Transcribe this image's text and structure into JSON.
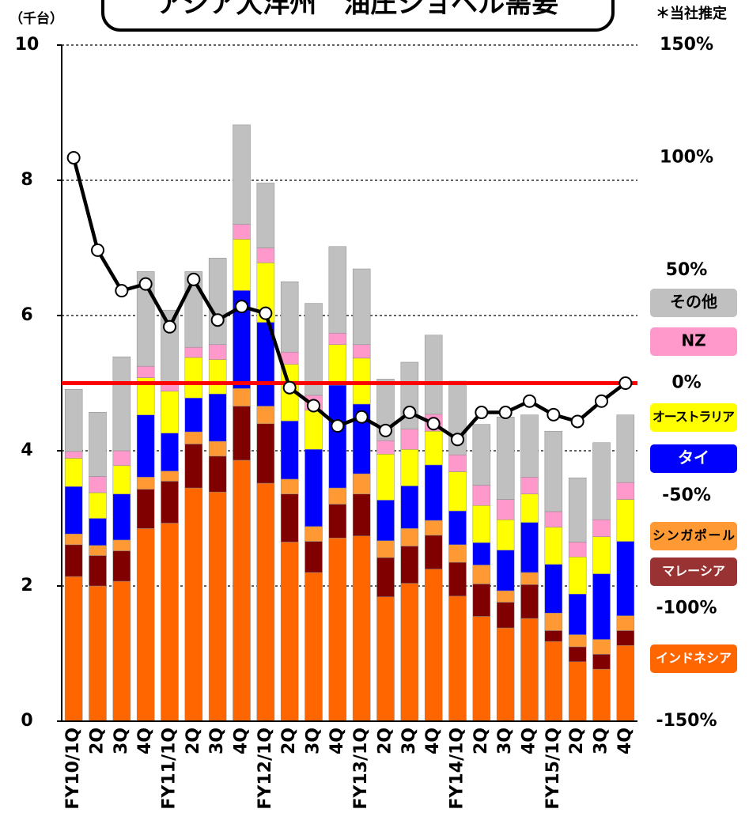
{
  "chart_data": {
    "type": "stacked_bar_line",
    "title": "アジア大洋州　油圧ショベル需要",
    "note": "＊当社推定",
    "y_unit": "（千台）",
    "categories": [
      "FY10/1Q",
      "2Q",
      "3Q",
      "4Q",
      "FY11/1Q",
      "2Q",
      "3Q",
      "4Q",
      "FY12/1Q",
      "2Q",
      "3Q",
      "4Q",
      "FY13/1Q",
      "2Q",
      "3Q",
      "4Q",
      "FY14/1Q",
      "2Q",
      "3Q",
      "4Q",
      "FY15/1Q",
      "2Q",
      "3Q",
      "4Q"
    ],
    "series": [
      {
        "name": "インドネシア",
        "color": "#ff6600",
        "values": [
          2.14,
          2.0,
          2.07,
          2.85,
          2.93,
          3.45,
          3.39,
          3.86,
          3.52,
          2.65,
          2.2,
          2.71,
          2.74,
          1.84,
          2.04,
          2.25,
          1.85,
          1.55,
          1.38,
          1.52,
          1.18,
          0.88,
          0.77,
          1.12
        ]
      },
      {
        "name": "マレーシア",
        "color": "#800000",
        "values": [
          0.47,
          0.45,
          0.45,
          0.58,
          0.62,
          0.65,
          0.53,
          0.8,
          0.88,
          0.71,
          0.46,
          0.5,
          0.62,
          0.58,
          0.55,
          0.5,
          0.5,
          0.48,
          0.38,
          0.5,
          0.16,
          0.22,
          0.22,
          0.22
        ]
      },
      {
        "name": "シンガポール",
        "color": "#ff9933",
        "values": [
          0.16,
          0.15,
          0.16,
          0.18,
          0.15,
          0.18,
          0.22,
          0.26,
          0.26,
          0.22,
          0.22,
          0.24,
          0.3,
          0.25,
          0.26,
          0.22,
          0.26,
          0.28,
          0.17,
          0.18,
          0.26,
          0.18,
          0.22,
          0.22
        ]
      },
      {
        "name": "タイ",
        "color": "#0000ff",
        "values": [
          0.7,
          0.4,
          0.68,
          0.92,
          0.56,
          0.5,
          0.7,
          1.45,
          1.24,
          0.86,
          1.14,
          1.52,
          1.03,
          0.6,
          0.63,
          0.82,
          0.5,
          0.33,
          0.6,
          0.74,
          0.72,
          0.6,
          0.97,
          1.1
        ]
      },
      {
        "name": "オーストラリア",
        "color": "#ffff00",
        "values": [
          0.42,
          0.38,
          0.42,
          0.55,
          0.62,
          0.6,
          0.51,
          0.76,
          0.88,
          0.84,
          0.58,
          0.6,
          0.68,
          0.68,
          0.54,
          0.5,
          0.58,
          0.55,
          0.45,
          0.42,
          0.55,
          0.55,
          0.55,
          0.62
        ]
      },
      {
        "name": "NZ",
        "color": "#ff99cc",
        "values": [
          0.1,
          0.24,
          0.22,
          0.17,
          0.1,
          0.15,
          0.22,
          0.22,
          0.22,
          0.18,
          0.22,
          0.17,
          0.2,
          0.2,
          0.3,
          0.25,
          0.25,
          0.3,
          0.3,
          0.25,
          0.23,
          0.22,
          0.25,
          0.25
        ]
      },
      {
        "name": "その他",
        "color": "#c0c0c0",
        "values": [
          0.92,
          0.95,
          1.39,
          1.4,
          1.1,
          1.12,
          1.28,
          1.47,
          0.96,
          1.04,
          1.36,
          1.28,
          1.12,
          0.91,
          0.99,
          1.17,
          1.09,
          0.9,
          1.22,
          0.92,
          1.19,
          0.95,
          1.14,
          1.0
        ]
      },
      {
        "color": "#000000",
        "axis": "y2",
        "values": [
          100,
          59,
          41,
          44,
          25,
          46,
          28,
          34,
          31,
          -2,
          -10,
          -19,
          -15,
          -21,
          -13,
          -18,
          -25,
          -13,
          -13,
          -8,
          -14,
          -17,
          -8,
          0
        ]
      }
    ],
    "ylim": [
      0,
      10
    ],
    "yticks": [
      0,
      2,
      4,
      6,
      8,
      10
    ],
    "y2lim": [
      -150,
      150
    ],
    "y2ticks": [
      {
        "value": -150,
        "label": "-150%"
      },
      {
        "value": -100,
        "label": "-100%"
      },
      {
        "value": -50,
        "label": "-50%"
      },
      {
        "value": 0,
        "label": "0%"
      },
      {
        "value": 50,
        "label": "50%"
      },
      {
        "value": 100,
        "label": "100%"
      },
      {
        "value": 150,
        "label": "150%"
      }
    ],
    "y2_reference_line": {
      "value": 0,
      "color": "#ff0000"
    },
    "grid": true
  }
}
